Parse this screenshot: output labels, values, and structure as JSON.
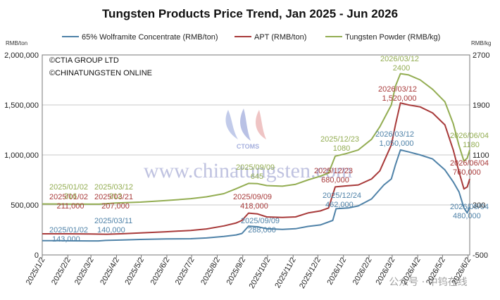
{
  "chart_data": {
    "type": "line",
    "title": "Tungsten Products Price Trend, Jan 2025 - Jun 2026",
    "left_unit": "RMB/ton",
    "right_unit": "RMB/kg",
    "credits": [
      "©CTIA GROUP LTD",
      "©CHINATUNGSTEN ONLINE"
    ],
    "watermark": "www.chinatungsten.com",
    "logo_text": "CTOMS",
    "wechat_mark": "公众号 · 中钨在线",
    "grid": true,
    "legend_position": "top",
    "left_axis": {
      "min": 0,
      "max": 2000000,
      "ticks": [
        "0",
        "500,000",
        "1,000,000",
        "1,500,000",
        "2,000,000"
      ]
    },
    "right_axis": {
      "min": -500,
      "max": 2700,
      "ticks": [
        "-500",
        "300",
        "1100",
        "1900",
        "2700"
      ]
    },
    "x_range": [
      "2025-01-02",
      "2026-06-04"
    ],
    "x_ticks": [
      "2025/1/2",
      "2025/2/2",
      "2025/3/2",
      "2025/4/2",
      "2025/5/2",
      "2025/6/2",
      "2025/7/2",
      "2025/8/2",
      "2025/9/2",
      "2025/10/2",
      "2025/11/2",
      "2025/12/2",
      "2026/1/2",
      "2026/2/2",
      "2026/3/2",
      "2026/4/2",
      "2026/5/2",
      "2026/6/2"
    ],
    "series": [
      {
        "name": "65% Wolframite Concentrate (RMB/ton)",
        "axis": "left",
        "color": "#4f82a8",
        "points": [
          [
            "2025-01-02",
            143000
          ],
          [
            "2025-01-20",
            143000
          ],
          [
            "2025-02-10",
            141000
          ],
          [
            "2025-03-11",
            140000
          ],
          [
            "2025-03-20",
            145000
          ],
          [
            "2025-04-10",
            150000
          ],
          [
            "2025-05-01",
            155000
          ],
          [
            "2025-06-01",
            160000
          ],
          [
            "2025-07-01",
            162000
          ],
          [
            "2025-07-20",
            170000
          ],
          [
            "2025-08-10",
            185000
          ],
          [
            "2025-08-25",
            200000
          ],
          [
            "2025-09-01",
            215000
          ],
          [
            "2025-09-09",
            288000
          ],
          [
            "2025-09-20",
            282000
          ],
          [
            "2025-10-01",
            262000
          ],
          [
            "2025-10-20",
            255000
          ],
          [
            "2025-11-05",
            262000
          ],
          [
            "2025-11-20",
            285000
          ],
          [
            "2025-12-05",
            300000
          ],
          [
            "2025-12-20",
            345000
          ],
          [
            "2025-12-24",
            462000
          ],
          [
            "2026-01-08",
            470000
          ],
          [
            "2026-01-20",
            490000
          ],
          [
            "2026-02-05",
            560000
          ],
          [
            "2026-02-20",
            700000
          ],
          [
            "2026-03-01",
            760000
          ],
          [
            "2026-03-06",
            900000
          ],
          [
            "2026-03-12",
            1050000
          ],
          [
            "2026-03-22",
            1030000
          ],
          [
            "2026-04-05",
            1000000
          ],
          [
            "2026-04-20",
            960000
          ],
          [
            "2026-05-05",
            850000
          ],
          [
            "2026-05-15",
            730000
          ],
          [
            "2026-05-22",
            630000
          ],
          [
            "2026-05-28",
            470000
          ],
          [
            "2026-06-01",
            420000
          ],
          [
            "2026-06-04",
            480000
          ]
        ],
        "labels": [
          {
            "date": "2025-01-02",
            "text": "2025/01/02",
            "value": "143,000"
          },
          {
            "date": "2025-03-11",
            "text": "2025/03/11",
            "value": "140,000"
          },
          {
            "date": "2025-09-09",
            "text": "2025/09/09",
            "value": "288,000"
          },
          {
            "date": "2025-12-24",
            "text": "2025/12/24",
            "value": "462,000"
          },
          {
            "date": "2026-03-12",
            "text": "2026/03/12",
            "value": "1,050,000"
          },
          {
            "date": "2026-06-04",
            "text": "2026/06/04",
            "value": "480,000"
          }
        ]
      },
      {
        "name": "APT (RMB/ton)",
        "axis": "left",
        "color": "#a83a3a",
        "points": [
          [
            "2025-01-02",
            211000
          ],
          [
            "2025-02-01",
            211000
          ],
          [
            "2025-03-01",
            209000
          ],
          [
            "2025-03-21",
            207000
          ],
          [
            "2025-04-10",
            212000
          ],
          [
            "2025-05-01",
            220000
          ],
          [
            "2025-06-01",
            232000
          ],
          [
            "2025-07-01",
            245000
          ],
          [
            "2025-07-20",
            260000
          ],
          [
            "2025-08-10",
            290000
          ],
          [
            "2025-08-25",
            320000
          ],
          [
            "2025-09-01",
            345000
          ],
          [
            "2025-09-09",
            418000
          ],
          [
            "2025-09-20",
            410000
          ],
          [
            "2025-10-01",
            380000
          ],
          [
            "2025-10-20",
            375000
          ],
          [
            "2025-11-05",
            380000
          ],
          [
            "2025-11-20",
            420000
          ],
          [
            "2025-12-05",
            440000
          ],
          [
            "2025-12-15",
            470000
          ],
          [
            "2025-12-23",
            680000
          ],
          [
            "2026-01-05",
            690000
          ],
          [
            "2026-01-20",
            700000
          ],
          [
            "2026-02-05",
            760000
          ],
          [
            "2026-02-15",
            840000
          ],
          [
            "2026-03-01",
            1100000
          ],
          [
            "2026-03-06",
            1300000
          ],
          [
            "2026-03-12",
            1520000
          ],
          [
            "2026-03-22",
            1500000
          ],
          [
            "2026-04-05",
            1480000
          ],
          [
            "2026-04-20",
            1420000
          ],
          [
            "2026-05-05",
            1300000
          ],
          [
            "2026-05-15",
            1050000
          ],
          [
            "2026-05-22",
            830000
          ],
          [
            "2026-05-28",
            660000
          ],
          [
            "2026-06-01",
            680000
          ],
          [
            "2026-06-04",
            760000
          ]
        ],
        "labels": [
          {
            "date": "2025-01-02",
            "text": "2025/01/02",
            "value": "211,000"
          },
          {
            "date": "2025-03-21",
            "text": "2025/03/21",
            "value": "207,000"
          },
          {
            "date": "2025-09-09",
            "text": "2025/09/09",
            "value": "418,000"
          },
          {
            "date": "2025-12-23",
            "text": "2025/12/23",
            "value": "680,000"
          },
          {
            "date": "2026-03-12",
            "text": "2026/03/12",
            "value": "1,520,000"
          },
          {
            "date": "2026-06-04",
            "text": "2026/06/04",
            "value": "760,000"
          }
        ]
      },
      {
        "name": "Tungsten Powder (RMB/kg)",
        "axis": "right",
        "color": "#93ad52",
        "points": [
          [
            "2025-01-02",
            316
          ],
          [
            "2025-02-01",
            314
          ],
          [
            "2025-03-12",
            312
          ],
          [
            "2025-04-01",
            330
          ],
          [
            "2025-05-01",
            345
          ],
          [
            "2025-06-01",
            370
          ],
          [
            "2025-07-01",
            400
          ],
          [
            "2025-07-20",
            430
          ],
          [
            "2025-08-10",
            480
          ],
          [
            "2025-08-25",
            560
          ],
          [
            "2025-09-09",
            645
          ],
          [
            "2025-09-20",
            640
          ],
          [
            "2025-10-01",
            610
          ],
          [
            "2025-10-20",
            600
          ],
          [
            "2025-11-05",
            630
          ],
          [
            "2025-11-20",
            700
          ],
          [
            "2025-12-05",
            760
          ],
          [
            "2025-12-15",
            810
          ],
          [
            "2025-12-23",
            1080
          ],
          [
            "2026-01-05",
            1120
          ],
          [
            "2026-01-20",
            1180
          ],
          [
            "2026-02-05",
            1350
          ],
          [
            "2026-02-15",
            1550
          ],
          [
            "2026-03-01",
            1900
          ],
          [
            "2026-03-06",
            2200
          ],
          [
            "2026-03-12",
            2400
          ],
          [
            "2026-03-22",
            2380
          ],
          [
            "2026-04-05",
            2300
          ],
          [
            "2026-04-20",
            2150
          ],
          [
            "2026-05-05",
            1950
          ],
          [
            "2026-05-15",
            1600
          ],
          [
            "2026-05-22",
            1250
          ],
          [
            "2026-05-28",
            1000
          ],
          [
            "2026-06-01",
            1050
          ],
          [
            "2026-06-04",
            1180
          ]
        ],
        "labels": [
          {
            "date": "2025-01-02",
            "text": "2025/01/02",
            "value": "316"
          },
          {
            "date": "2025-03-12",
            "text": "2025/03/12",
            "value": "312"
          },
          {
            "date": "2025-09-09",
            "text": "2025/09/09",
            "value": "645"
          },
          {
            "date": "2025-12-23",
            "text": "2025/12/23",
            "value": "1080"
          },
          {
            "date": "2026-03-12",
            "text": "2026/03/12",
            "value": "2400"
          },
          {
            "date": "2026-06-04",
            "text": "2026/06/04",
            "value": "1180"
          }
        ]
      }
    ]
  }
}
